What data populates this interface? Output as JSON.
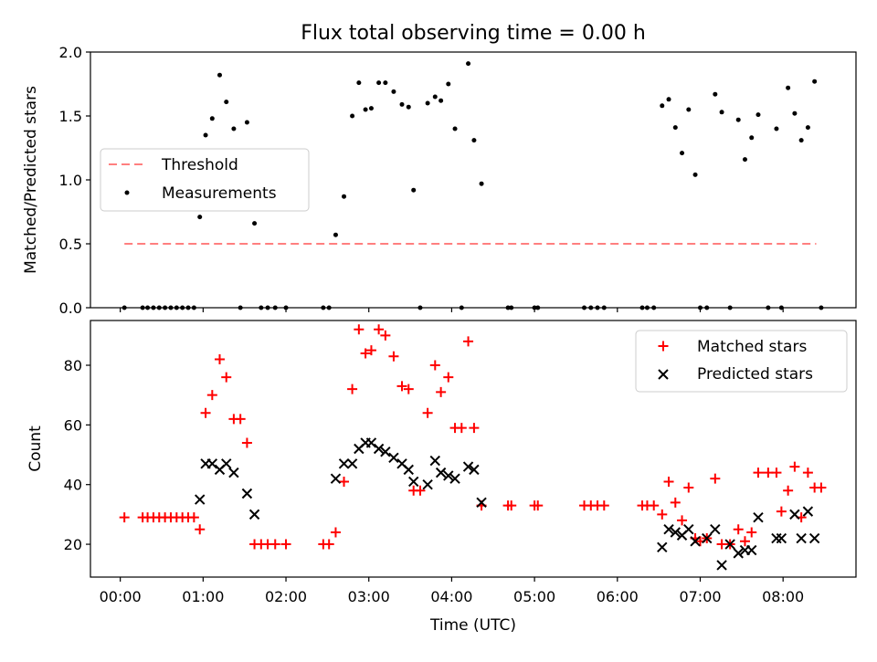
{
  "chart_data": [
    {
      "type": "scatter",
      "title": "Flux total observing time = 0.00 h",
      "xlabel": "",
      "ylabel": "Matched/Predicted stars",
      "xlim": [
        -0.36,
        8.88
      ],
      "ylim": [
        0.0,
        2.0
      ],
      "yticks": [
        0.0,
        0.5,
        1.0,
        1.5,
        2.0
      ],
      "ytick_labels": [
        "0.0",
        "0.5",
        "1.0",
        "1.5",
        "2.0"
      ],
      "grid": false,
      "legend_position": "center-left",
      "threshold": {
        "name": "Threshold",
        "value": 0.5,
        "x": [
          0.05,
          8.4
        ],
        "color": "#ff7f7f",
        "style": "dashed"
      },
      "series": [
        {
          "name": "Measurements",
          "color": "#000000",
          "marker": "dot",
          "x": [
            0.05,
            0.27,
            0.33,
            0.4,
            0.47,
            0.54,
            0.61,
            0.68,
            0.75,
            0.82,
            0.89,
            0.96,
            1.03,
            1.11,
            1.2,
            1.28,
            1.37,
            1.45,
            1.53,
            1.62,
            1.7,
            1.78,
            1.87,
            2.0,
            2.45,
            2.52,
            2.6,
            2.7,
            2.8,
            2.88,
            2.96,
            3.03,
            3.12,
            3.2,
            3.3,
            3.4,
            3.48,
            3.54,
            3.62,
            3.71,
            3.8,
            3.87,
            3.96,
            4.04,
            4.12,
            4.2,
            4.27,
            4.36,
            4.68,
            4.72,
            5.0,
            5.04,
            5.6,
            5.68,
            5.76,
            5.84,
            6.3,
            6.36,
            6.44,
            6.54,
            6.62,
            6.7,
            6.78,
            6.86,
            6.94,
            7.0,
            7.08,
            7.18,
            7.26,
            7.36,
            7.46,
            7.54,
            7.62,
            7.7,
            7.82,
            7.92,
            7.98,
            8.06,
            8.14,
            8.22,
            8.3,
            8.38,
            8.46
          ],
          "y": [
            0.0,
            0.0,
            0.0,
            0.0,
            0.0,
            0.0,
            0.0,
            0.0,
            0.0,
            0.0,
            0.0,
            0.71,
            1.35,
            1.48,
            1.82,
            1.61,
            1.4,
            0.0,
            1.45,
            0.66,
            0.0,
            0.0,
            0.0,
            0.0,
            0.0,
            0.0,
            0.57,
            0.87,
            1.5,
            1.76,
            1.55,
            1.56,
            1.76,
            1.76,
            1.69,
            1.59,
            1.57,
            0.92,
            0.0,
            1.6,
            1.65,
            1.62,
            1.75,
            1.4,
            0.0,
            1.91,
            1.31,
            0.97,
            0.0,
            0.0,
            0.0,
            0.0,
            0.0,
            0.0,
            0.0,
            0.0,
            0.0,
            0.0,
            0.0,
            1.58,
            1.63,
            1.41,
            1.21,
            1.55,
            1.04,
            0.0,
            0.0,
            1.67,
            1.53,
            0.0,
            1.47,
            1.16,
            1.33,
            1.51,
            0.0,
            1.4,
            0.0,
            1.72,
            1.52,
            1.31,
            1.41,
            1.77,
            0.0
          ]
        }
      ]
    },
    {
      "type": "scatter",
      "title": "",
      "xlabel": "Time (UTC)",
      "ylabel": "Count",
      "xlim": [
        -0.36,
        8.88
      ],
      "ylim": [
        9,
        95
      ],
      "yticks": [
        20,
        40,
        60,
        80
      ],
      "ytick_labels": [
        "20",
        "40",
        "60",
        "80"
      ],
      "xticks": [
        0,
        1,
        2,
        3,
        4,
        5,
        6,
        7,
        8
      ],
      "xtick_labels": [
        "00:00",
        "01:00",
        "02:00",
        "03:00",
        "04:00",
        "05:00",
        "06:00",
        "07:00",
        "08:00"
      ],
      "grid": false,
      "legend_position": "top-right",
      "series": [
        {
          "name": "Matched stars",
          "color": "#ff0000",
          "marker": "plus",
          "x": [
            0.05,
            0.27,
            0.33,
            0.4,
            0.47,
            0.54,
            0.61,
            0.68,
            0.75,
            0.82,
            0.89,
            0.96,
            1.03,
            1.11,
            1.2,
            1.28,
            1.37,
            1.45,
            1.53,
            1.62,
            1.7,
            1.78,
            1.87,
            2.0,
            2.45,
            2.52,
            2.6,
            2.7,
            2.8,
            2.88,
            2.96,
            3.03,
            3.12,
            3.2,
            3.3,
            3.4,
            3.48,
            3.54,
            3.62,
            3.71,
            3.8,
            3.87,
            3.96,
            4.04,
            4.12,
            4.2,
            4.27,
            4.36,
            4.68,
            4.72,
            5.0,
            5.04,
            5.6,
            5.68,
            5.76,
            5.84,
            6.3,
            6.36,
            6.44,
            6.54,
            6.62,
            6.7,
            6.78,
            6.86,
            6.94,
            7.0,
            7.08,
            7.18,
            7.26,
            7.36,
            7.46,
            7.54,
            7.62,
            7.7,
            7.82,
            7.92,
            7.98,
            8.06,
            8.14,
            8.22,
            8.3,
            8.38,
            8.46
          ],
          "y": [
            29,
            29,
            29,
            29,
            29,
            29,
            29,
            29,
            29,
            29,
            29,
            25,
            64,
            70,
            82,
            76,
            62,
            62,
            54,
            20,
            20,
            20,
            20,
            20,
            20,
            20,
            24,
            41,
            72,
            92,
            84,
            85,
            92,
            90,
            83,
            73,
            72,
            38,
            38,
            64,
            80,
            71,
            76,
            59,
            59,
            88,
            59,
            33,
            33,
            33,
            33,
            33,
            33,
            33,
            33,
            33,
            33,
            33,
            33,
            30,
            41,
            34,
            28,
            39,
            22,
            21,
            22,
            42,
            20,
            20,
            25,
            21,
            24,
            44,
            44,
            44,
            31,
            38,
            46,
            29,
            44,
            39,
            39
          ]
        },
        {
          "name": "Predicted stars",
          "color": "#000000",
          "marker": "x",
          "x": [
            0.96,
            1.03,
            1.11,
            1.2,
            1.28,
            1.37,
            1.53,
            1.62,
            2.6,
            2.7,
            2.8,
            2.88,
            2.96,
            3.03,
            3.12,
            3.2,
            3.3,
            3.4,
            3.48,
            3.54,
            3.71,
            3.8,
            3.87,
            3.96,
            4.04,
            4.2,
            4.27,
            4.36,
            6.54,
            6.62,
            6.7,
            6.78,
            6.86,
            6.94,
            7.08,
            7.18,
            7.26,
            7.36,
            7.46,
            7.54,
            7.62,
            7.7,
            7.92,
            7.98,
            8.14,
            8.22,
            8.3,
            8.38
          ],
          "y": [
            35,
            47,
            47,
            45,
            47,
            44,
            37,
            30,
            42,
            47,
            47,
            52,
            54,
            54,
            52,
            51,
            49,
            47,
            45,
            41,
            40,
            48,
            44,
            43,
            42,
            46,
            45,
            34,
            19,
            25,
            24,
            23,
            25,
            21,
            22,
            25,
            13,
            20,
            17,
            18,
            18,
            29,
            22,
            22,
            30,
            22,
            31,
            22
          ]
        }
      ]
    }
  ]
}
